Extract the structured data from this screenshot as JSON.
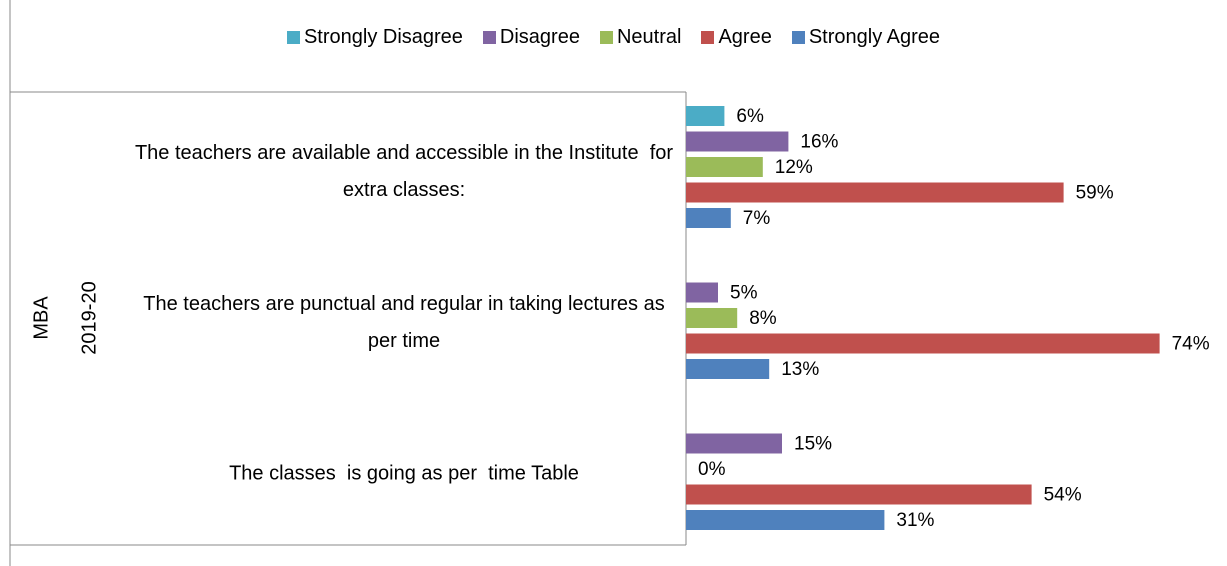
{
  "chart_data": {
    "type": "bar",
    "orientation": "horizontal",
    "group_labels": [
      "MBA",
      "2019-20"
    ],
    "categories": [
      "The teachers are available and accessible in the Institute  for extra classes:",
      "The teachers are punctual and regular in taking lectures as per time",
      "The classes  is going as per  time Table"
    ],
    "series": [
      {
        "name": "Strongly Disagree",
        "color": "#4bacc6",
        "values": [
          6,
          null,
          null
        ],
        "value_labels": [
          "6%",
          null,
          null
        ]
      },
      {
        "name": "Disagree",
        "color": "#8064a2",
        "values": [
          16,
          5,
          15
        ],
        "value_labels": [
          "16%",
          "5%",
          "15%"
        ]
      },
      {
        "name": "Neutral",
        "color": "#9bbb59",
        "values": [
          12,
          8,
          0
        ],
        "value_labels": [
          "12%",
          "8%",
          "0%"
        ]
      },
      {
        "name": "Agree",
        "color": "#c0504d",
        "values": [
          59,
          74,
          54
        ],
        "value_labels": [
          "59%",
          "74%",
          "54%"
        ]
      },
      {
        "name": "Strongly Agree",
        "color": "#4f81bd",
        "values": [
          7,
          13,
          31
        ],
        "value_labels": [
          "7%",
          "13%",
          "31%"
        ]
      }
    ],
    "xlim": [
      0,
      80
    ],
    "legend": "top"
  }
}
